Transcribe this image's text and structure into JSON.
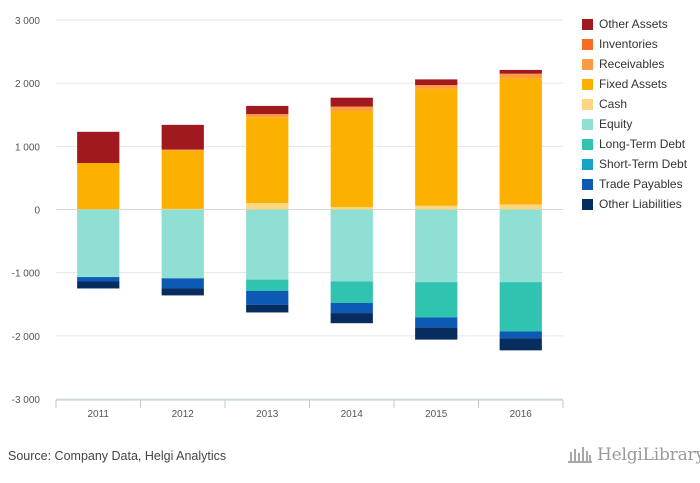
{
  "chart_data": {
    "type": "bar",
    "stacked": true,
    "categories": [
      "2011",
      "2012",
      "2013",
      "2014",
      "2015",
      "2016"
    ],
    "ylim": [
      -3000,
      3000
    ],
    "yticks": [
      3000,
      2000,
      1000,
      0,
      -1000,
      -2000,
      -3000
    ],
    "ytick_labels": [
      "3 000",
      "2 000",
      "1 000",
      "0",
      "-1 000",
      "-2 000",
      "-3 000"
    ],
    "grid": true,
    "legend_position": "right",
    "positive_series": [
      {
        "name": "Cash",
        "color": "#fed681",
        "values": [
          5,
          10,
          100,
          40,
          60,
          80
        ]
      },
      {
        "name": "Fixed Assets",
        "color": "#fcb100",
        "values": [
          730,
          920,
          1360,
          1520,
          1850,
          2000
        ]
      },
      {
        "name": "Receivables",
        "color": "#fc9b43",
        "values": [
          0,
          20,
          50,
          70,
          60,
          70
        ]
      },
      {
        "name": "Inventories",
        "color": "#f76b22",
        "values": [
          0,
          0,
          0,
          0,
          0,
          0
        ]
      },
      {
        "name": "Other Assets",
        "color": "#a0191f",
        "values": [
          495,
          390,
          130,
          140,
          90,
          60
        ]
      }
    ],
    "negative_series": [
      {
        "name": "Equity",
        "color": "#8fdfd4",
        "values": [
          -1070,
          -1090,
          -1110,
          -1140,
          -1150,
          -1150
        ]
      },
      {
        "name": "Long-Term Debt",
        "color": "#30c3b0",
        "values": [
          0,
          0,
          -180,
          -340,
          -560,
          -780
        ]
      },
      {
        "name": "Short-Term Debt",
        "color": "#17a2c9",
        "values": [
          0,
          0,
          0,
          0,
          0,
          0
        ]
      },
      {
        "name": "Trade Payables",
        "color": "#0c5ab4",
        "values": [
          -70,
          -160,
          -220,
          -160,
          -160,
          -110
        ]
      },
      {
        "name": "Other Liabilities",
        "color": "#072c5e",
        "values": [
          -110,
          -110,
          -120,
          -160,
          -190,
          -190
        ]
      }
    ]
  },
  "legend": [
    {
      "label": "Other Assets",
      "color": "#a0191f"
    },
    {
      "label": "Inventories",
      "color": "#f76b22"
    },
    {
      "label": "Receivables",
      "color": "#fc9b43"
    },
    {
      "label": "Fixed Assets",
      "color": "#fcb100"
    },
    {
      "label": "Cash",
      "color": "#fed681"
    },
    {
      "label": "Equity",
      "color": "#8fdfd4"
    },
    {
      "label": "Long-Term Debt",
      "color": "#30c3b0"
    },
    {
      "label": "Short-Term Debt",
      "color": "#17a2c9"
    },
    {
      "label": "Trade Payables",
      "color": "#0c5ab4"
    },
    {
      "label": "Other Liabilities",
      "color": "#072c5e"
    }
  ],
  "source_text": "Source: Company Data, Helgi Analytics",
  "logo": {
    "text": "HelgiLibrary",
    "icon": "library-columns-icon"
  }
}
